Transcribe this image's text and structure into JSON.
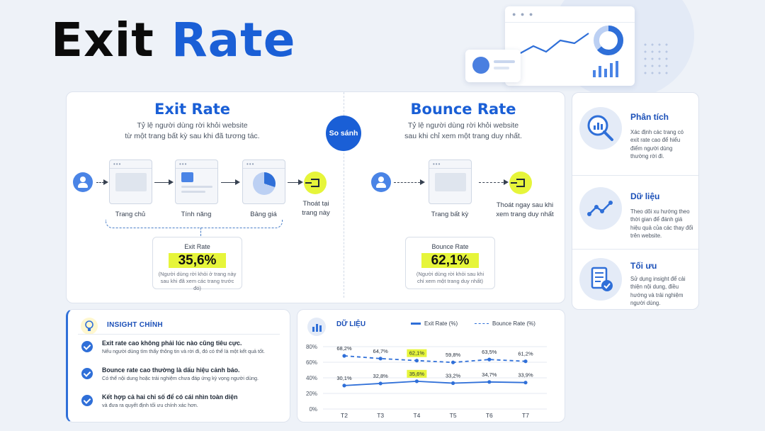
{
  "title": {
    "word1": "Exit",
    "word2": "Rate"
  },
  "main": {
    "exit": {
      "heading": "Exit Rate",
      "desc1": "Tỷ lệ người dùng rời khỏi website",
      "desc2": "từ một trang bất kỳ sau khi đã tương tác.",
      "pages": [
        "Trang chủ",
        "Tính năng",
        "Bảng giá"
      ],
      "exit_label1": "Thoát tại",
      "exit_label2": "trang này",
      "stat_title": "Exit Rate",
      "stat_value": "35,6%",
      "stat_note1": "(Người dùng rời khỏi ở trang này",
      "stat_note2": "sau khi đã xem các trang trước đó)"
    },
    "compare_label": "So sánh",
    "bounce": {
      "heading": "Bounce Rate",
      "desc1": "Tỷ lệ người dùng rời khỏi website",
      "desc2": "sau khi chỉ xem một trang duy nhất.",
      "page": "Trang bất kỳ",
      "exit_label1": "Thoát ngay sau khi",
      "exit_label2": "xem trang duy nhất",
      "stat_title": "Bounce Rate",
      "stat_value": "62,1%",
      "stat_note1": "(Người dùng rời khỏi sau khi",
      "stat_note2": "chỉ xem một trang duy nhất)"
    }
  },
  "side": [
    {
      "title": "Phân tích",
      "desc": [
        "Xác định các trang có",
        "exit rate cao để hiểu",
        "điểm người dùng",
        "thường rời đi."
      ],
      "icon": "magnifier-chart-icon"
    },
    {
      "title": "Dữ liệu",
      "desc": [
        "Theo dõi xu hướng theo",
        "thời gian để đánh giá",
        "hiệu quả của các thay đổi",
        "trên website."
      ],
      "icon": "line-graph-icon"
    },
    {
      "title": "Tối ưu",
      "desc": [
        "Sử dụng insight để cải",
        "thiện nội dung, điều",
        "hướng và trải nghiệm",
        "người dùng."
      ],
      "icon": "checklist-icon"
    }
  ],
  "insight": {
    "title": "INSIGHT CHÍNH",
    "items": [
      {
        "h": "Exit rate cao không phải lúc nào cũng tiêu cực.",
        "d": "Nếu người dùng tìm thấy thông tin và rời đi, đó có thể là một kết quả tốt."
      },
      {
        "h": "Bounce rate cao thường là dấu hiệu cảnh báo.",
        "d": "Có thể nội dung hoặc trải nghiệm chưa đáp ứng kỳ vọng người dùng."
      },
      {
        "h": "Kết hợp cả hai chỉ số để có cái nhìn toàn diện",
        "d": "và đưa ra quyết định tối ưu chính xác hơn."
      }
    ]
  },
  "data_panel": {
    "title": "DỮ LIỆU",
    "legend_exit": "Exit Rate (%)",
    "legend_bounce": "Bounce Rate (%)"
  },
  "chart_data": {
    "type": "line",
    "x": [
      "T2",
      "T3",
      "T4",
      "T5",
      "T6",
      "T7"
    ],
    "series": [
      {
        "name": "Exit Rate (%)",
        "values": [
          30.1,
          32.8,
          35.6,
          33.2,
          34.7,
          33.9
        ],
        "labels": [
          "30,1%",
          "32,8%",
          "35,6%",
          "33,2%",
          "34,7%",
          "33,9%"
        ],
        "style": "solid"
      },
      {
        "name": "Bounce Rate (%)",
        "values": [
          68.2,
          64.7,
          62.1,
          59.8,
          63.5,
          61.2
        ],
        "labels": [
          "68,2%",
          "64,7%",
          "62,1%",
          "59,8%",
          "63,5%",
          "61,2%"
        ],
        "style": "dashed"
      }
    ],
    "highlight_index": 2,
    "yticks": [
      "0%",
      "20%",
      "40%",
      "60%",
      "80%"
    ],
    "ylim": [
      0,
      80
    ],
    "colors": {
      "line": "#2f6fd8",
      "highlight": "#e6f53a",
      "grid": "#e5e9f0"
    }
  }
}
